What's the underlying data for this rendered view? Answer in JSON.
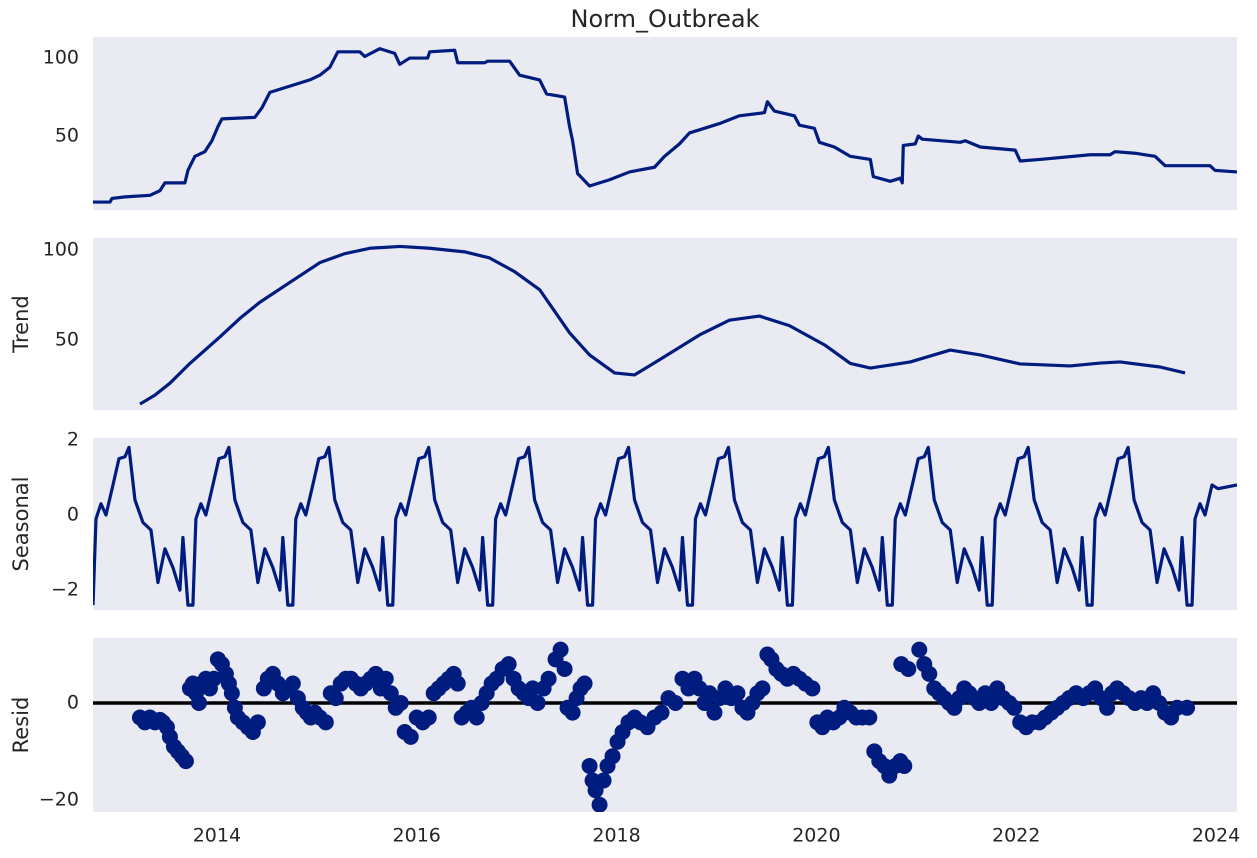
{
  "chart_data": [
    {
      "type": "line",
      "title": "Norm_Outbreak",
      "color": "#001c7f",
      "grid": false,
      "xlim": [
        2012.76,
        2024.21
      ],
      "ylim": [
        2.6,
        113.5
      ],
      "yticks": [
        50,
        100
      ],
      "x": [
        2012.76,
        2012.93,
        2012.95,
        2013.08,
        2013.33,
        2013.43,
        2013.48,
        2013.68,
        2013.71,
        2013.78,
        2013.88,
        2013.95,
        2014.01,
        2014.05,
        2014.38,
        2014.45,
        2014.53,
        2014.73,
        2014.93,
        2015.03,
        2015.13,
        2015.21,
        2015.43,
        2015.48,
        2015.63,
        2015.78,
        2015.83,
        2015.93,
        2016.11,
        2016.13,
        2016.38,
        2016.41,
        2016.68,
        2016.71,
        2016.93,
        2017.03,
        2017.23,
        2017.3,
        2017.48,
        2017.53,
        2017.56,
        2017.61,
        2017.73,
        2017.93,
        2018.13,
        2018.38,
        2018.48,
        2018.63,
        2018.73,
        2019.03,
        2019.23,
        2019.48,
        2019.51,
        2019.58,
        2019.78,
        2019.83,
        2019.98,
        2020.03,
        2020.18,
        2020.34,
        2020.54,
        2020.57,
        2020.74,
        2020.84,
        2020.86,
        2020.87,
        2020.99,
        2021.02,
        2021.06,
        2021.44,
        2021.49,
        2021.64,
        2021.99,
        2022.04,
        2022.24,
        2022.74,
        2022.94,
        2022.99,
        2023.19,
        2023.39,
        2023.49,
        2023.94,
        2023.99,
        2024.21
      ],
      "values": [
        7.7,
        7.7,
        10,
        11,
        12,
        15,
        20,
        20,
        28,
        37,
        40,
        47,
        56,
        61,
        62,
        68,
        78,
        82,
        86,
        89,
        94,
        104,
        104,
        101,
        106,
        103,
        96,
        100,
        100,
        104,
        105,
        97,
        97,
        98,
        98,
        89,
        86,
        77,
        75,
        56,
        47,
        26,
        18,
        22,
        27,
        30,
        37,
        45,
        52,
        58,
        63,
        65,
        72,
        66,
        63,
        57,
        55,
        46,
        43,
        37,
        35,
        24,
        21,
        23,
        20,
        44,
        45,
        50,
        48,
        46,
        47,
        43,
        41,
        34,
        35,
        38,
        38,
        40,
        39,
        37,
        31,
        31,
        28,
        27
      ]
    },
    {
      "type": "line",
      "ylabel": "Trend",
      "color": "#001c7f",
      "grid": false,
      "xlim": [
        2012.76,
        2024.21
      ],
      "ylim": [
        11.1,
        106.7
      ],
      "yticks": [
        50,
        100
      ],
      "x": [
        2013.23,
        2013.38,
        2013.53,
        2013.73,
        2014.03,
        2014.23,
        2014.43,
        2014.73,
        2015.03,
        2015.28,
        2015.53,
        2015.83,
        2016.13,
        2016.48,
        2016.73,
        2016.98,
        2017.23,
        2017.53,
        2017.73,
        2017.98,
        2018.18,
        2018.43,
        2018.83,
        2019.13,
        2019.43,
        2019.73,
        2020.09,
        2020.34,
        2020.54,
        2020.94,
        2021.34,
        2021.64,
        2022.04,
        2022.54,
        2022.84,
        2023.04,
        2023.44,
        2023.69
      ],
      "values": [
        14.4,
        19.4,
        26,
        37,
        51.7,
        62,
        71,
        82,
        93,
        98,
        101,
        102,
        101,
        99,
        95.6,
        88,
        78,
        54,
        41.7,
        31.7,
        30.6,
        39,
        52.8,
        61,
        63.3,
        58,
        47,
        37,
        34.4,
        37.8,
        44.4,
        41.7,
        36.7,
        35.6,
        37.2,
        37.8,
        35,
        31.7
      ]
    },
    {
      "type": "line",
      "ylabel": "Seasonal",
      "color": "#001c7f",
      "grid": false,
      "xlim": [
        2012.76,
        2024.21
      ],
      "ylim": [
        -2.53,
        2.05
      ],
      "yticks": [
        {
          "value": -2,
          "label": "−2"
        },
        0,
        2
      ],
      "x": [
        2012.76,
        2012.79,
        2012.84,
        2012.89,
        2012.96,
        2013.02,
        2013.08,
        2013.12,
        2013.18,
        2013.26,
        2013.34,
        2013.41,
        2013.48,
        2013.56,
        2013.63,
        2013.66,
        2013.71,
        2013.76,
        2013.79,
        2013.84,
        2013.89,
        2013.96,
        2014.02,
        2014.08,
        2014.12,
        2014.18,
        2014.26,
        2014.34,
        2014.41,
        2014.48,
        2014.56,
        2014.63,
        2014.66,
        2014.71,
        2014.76,
        2014.79,
        2014.84,
        2014.89,
        2014.96,
        2015.02,
        2015.08,
        2015.12,
        2015.18,
        2015.26,
        2015.34,
        2015.41,
        2015.48,
        2015.56,
        2015.63,
        2015.66,
        2015.71,
        2015.76,
        2015.79,
        2015.84,
        2015.89,
        2015.96,
        2016.02,
        2016.08,
        2016.12,
        2016.18,
        2016.26,
        2016.34,
        2016.41,
        2016.48,
        2016.56,
        2016.63,
        2016.66,
        2016.71,
        2016.76,
        2016.79,
        2016.84,
        2016.89,
        2016.96,
        2017.02,
        2017.08,
        2017.12,
        2017.18,
        2017.26,
        2017.34,
        2017.41,
        2017.48,
        2017.56,
        2017.63,
        2017.66,
        2017.71,
        2017.76,
        2017.79,
        2017.84,
        2017.89,
        2017.96,
        2018.02,
        2018.08,
        2018.12,
        2018.18,
        2018.26,
        2018.34,
        2018.41,
        2018.48,
        2018.56,
        2018.63,
        2018.66,
        2018.71,
        2018.76,
        2018.79,
        2018.84,
        2018.89,
        2018.96,
        2019.02,
        2019.08,
        2019.12,
        2019.18,
        2019.26,
        2019.34,
        2019.41,
        2019.48,
        2019.56,
        2019.63,
        2019.66,
        2019.71,
        2019.76,
        2019.79,
        2019.84,
        2019.89,
        2019.96,
        2020.02,
        2020.08,
        2020.12,
        2020.18,
        2020.26,
        2020.34,
        2020.41,
        2020.48,
        2020.56,
        2020.63,
        2020.66,
        2020.71,
        2020.76,
        2020.79,
        2020.84,
        2020.89,
        2020.96,
        2021.02,
        2021.08,
        2021.12,
        2021.18,
        2021.26,
        2021.34,
        2021.41,
        2021.48,
        2021.56,
        2021.63,
        2021.66,
        2021.71,
        2021.76,
        2021.79,
        2021.84,
        2021.89,
        2021.96,
        2022.02,
        2022.08,
        2022.12,
        2022.18,
        2022.26,
        2022.34,
        2022.41,
        2022.48,
        2022.56,
        2022.63,
        2022.66,
        2022.71,
        2022.76,
        2022.79,
        2022.84,
        2022.89,
        2022.96,
        2023.02,
        2023.08,
        2023.12,
        2023.18,
        2023.26,
        2023.34,
        2023.41,
        2023.48,
        2023.56,
        2023.63,
        2023.66,
        2023.71,
        2023.76,
        2023.79,
        2023.84,
        2023.89,
        2023.96,
        2024.02,
        2024.21
      ],
      "values": [
        -2.4,
        -0.1,
        0.3,
        0,
        0.8,
        1.5,
        1.55,
        1.8,
        0.4,
        -0.2,
        -0.4,
        -1.8,
        -0.9,
        -1.4,
        -2,
        -0.6,
        -2.4,
        -2.4,
        -0.1,
        0.3,
        0,
        0.8,
        1.5,
        1.55,
        1.8,
        0.4,
        -0.2,
        -0.4,
        -1.8,
        -0.9,
        -1.4,
        -2,
        -0.6,
        -2.4,
        -2.4,
        -0.1,
        0.3,
        0,
        0.8,
        1.5,
        1.55,
        1.8,
        0.4,
        -0.2,
        -0.4,
        -1.8,
        -0.9,
        -1.4,
        -2,
        -0.6,
        -2.4,
        -2.4,
        -0.1,
        0.3,
        0,
        0.8,
        1.5,
        1.55,
        1.8,
        0.4,
        -0.2,
        -0.4,
        -1.8,
        -0.9,
        -1.4,
        -2,
        -0.6,
        -2.4,
        -2.4,
        -0.1,
        0.3,
        0,
        0.8,
        1.5,
        1.55,
        1.8,
        0.4,
        -0.2,
        -0.4,
        -1.8,
        -0.9,
        -1.4,
        -2,
        -0.6,
        -2.4,
        -2.4,
        -0.1,
        0.3,
        0,
        0.8,
        1.5,
        1.55,
        1.8,
        0.4,
        -0.2,
        -0.4,
        -1.8,
        -0.9,
        -1.4,
        -2,
        -0.6,
        -2.4,
        -2.4,
        -0.1,
        0.3,
        0,
        0.8,
        1.5,
        1.55,
        1.8,
        0.4,
        -0.2,
        -0.4,
        -1.8,
        -0.9,
        -1.4,
        -2,
        -0.6,
        -2.4,
        -2.4,
        -0.1,
        0.3,
        0,
        0.8,
        1.5,
        1.55,
        1.8,
        0.4,
        -0.2,
        -0.4,
        -1.8,
        -0.9,
        -1.4,
        -2,
        -0.6,
        -2.4,
        -2.4,
        -0.1,
        0.3,
        0,
        0.8,
        1.5,
        1.55,
        1.8,
        0.4,
        -0.2,
        -0.4,
        -1.8,
        -0.9,
        -1.4,
        -2,
        -0.6,
        -2.4,
        -2.4,
        -0.1,
        0.3,
        0,
        0.8,
        1.5,
        1.55,
        1.8,
        0.4,
        -0.2,
        -0.4,
        -1.8,
        -0.9,
        -1.4,
        -2,
        -0.6,
        -2.4,
        -2.4,
        -0.1,
        0.3,
        0,
        0.8,
        1.5,
        1.55,
        1.8,
        0.4,
        -0.2,
        -0.4,
        -1.8,
        -0.9,
        -1.4,
        -2,
        -0.6,
        -2.4,
        -2.4,
        -0.1,
        0.3,
        0,
        0.8,
        0.7,
        0.8
      ]
    },
    {
      "type": "scatter",
      "ylabel": "Resid",
      "color": "#001c7f",
      "grid": false,
      "axhline": 0,
      "xlim": [
        2012.76,
        2024.21
      ],
      "ylim": [
        -22.5,
        13.4
      ],
      "yticks": [
        {
          "value": -20,
          "label": "−20"
        },
        0
      ],
      "xticks": [
        2014,
        2016,
        2018,
        2020,
        2022,
        2024
      ],
      "x": [
        2013.23,
        2013.28,
        2013.33,
        2013.38,
        2013.43,
        2013.46,
        2013.5,
        2013.53,
        2013.57,
        2013.61,
        2013.65,
        2013.69,
        2013.73,
        2013.76,
        2013.79,
        2013.82,
        2013.85,
        2013.89,
        2013.93,
        2013.97,
        2014.01,
        2014.05,
        2014.09,
        2014.12,
        2014.15,
        2014.18,
        2014.21,
        2014.26,
        2014.31,
        2014.36,
        2014.41,
        2014.47,
        2014.51,
        2014.56,
        2014.61,
        2014.66,
        2014.71,
        2014.76,
        2014.81,
        2014.86,
        2014.9,
        2014.94,
        2014.98,
        2015.03,
        2015.09,
        2015.14,
        2015.19,
        2015.24,
        2015.29,
        2015.34,
        2015.39,
        2015.44,
        2015.49,
        2015.54,
        2015.59,
        2015.64,
        2015.69,
        2015.74,
        2015.79,
        2015.84,
        2015.88,
        2015.94,
        2016.0,
        2016.06,
        2016.12,
        2016.17,
        2016.22,
        2016.27,
        2016.32,
        2016.37,
        2016.41,
        2016.45,
        2016.5,
        2016.55,
        2016.6,
        2016.65,
        2016.7,
        2016.75,
        2016.8,
        2016.86,
        2016.92,
        2016.97,
        2017.02,
        2017.07,
        2017.12,
        2017.16,
        2017.21,
        2017.27,
        2017.32,
        2017.39,
        2017.44,
        2017.48,
        2017.51,
        2017.56,
        2017.6,
        2017.64,
        2017.68,
        2017.73,
        2017.76,
        2017.79,
        2017.83,
        2017.87,
        2017.91,
        2017.96,
        2018.01,
        2018.06,
        2018.12,
        2018.18,
        2018.24,
        2018.31,
        2018.38,
        2018.45,
        2018.52,
        2018.59,
        2018.66,
        2018.72,
        2018.78,
        2018.83,
        2018.88,
        2018.93,
        2018.98,
        2019.03,
        2019.09,
        2019.15,
        2019.21,
        2019.26,
        2019.31,
        2019.36,
        2019.41,
        2019.46,
        2019.51,
        2019.55,
        2019.6,
        2019.65,
        2019.71,
        2019.77,
        2019.83,
        2019.89,
        2019.96,
        2020.01,
        2020.06,
        2020.11,
        2020.17,
        2020.23,
        2020.28,
        2020.34,
        2020.4,
        2020.46,
        2020.53,
        2020.58,
        2020.63,
        2020.68,
        2020.73,
        2020.79,
        2020.84,
        2020.88,
        2020.85,
        2020.92,
        2021.03,
        2021.08,
        2021.13,
        2021.18,
        2021.23,
        2021.28,
        2021.33,
        2021.38,
        2021.43,
        2021.48,
        2021.53,
        2021.58,
        2021.63,
        2021.69,
        2021.75,
        2021.81,
        2021.87,
        2021.93,
        2021.98,
        2022.04,
        2022.1,
        2022.16,
        2022.23,
        2022.29,
        2022.35,
        2022.41,
        2022.47,
        2022.53,
        2022.6,
        2022.67,
        2022.73,
        2022.79,
        2022.85,
        2022.91,
        2022.96,
        2023.01,
        2023.07,
        2023.13,
        2023.19,
        2023.25,
        2023.31,
        2023.37,
        2023.43,
        2023.49,
        2023.55,
        2023.61,
        2023.71
      ],
      "values": [
        -3,
        -4,
        -3,
        -4,
        -3.5,
        -4,
        -5,
        -7,
        -9,
        -10,
        -11,
        -12,
        3,
        4,
        2,
        0,
        4,
        5,
        3,
        5,
        9,
        8,
        6,
        4,
        2,
        -1,
        -3,
        -4,
        -5,
        -6,
        -4,
        3,
        5,
        6,
        4,
        2,
        3,
        4,
        1,
        -1,
        -2,
        -3,
        -2,
        -3,
        -4,
        2,
        1,
        4,
        5,
        5,
        4,
        3,
        4,
        5,
        6,
        3,
        5,
        2,
        -1,
        0,
        -6,
        -7,
        -3,
        -4,
        -3,
        2,
        3,
        4,
        5,
        6,
        4,
        -3,
        -2,
        -1,
        -3,
        0,
        2,
        4,
        5,
        7,
        8,
        5,
        3,
        2,
        1,
        3,
        0,
        3,
        5,
        9,
        11,
        7,
        -1,
        -2,
        1,
        3,
        4,
        -13,
        -16,
        -18,
        -21,
        -16,
        -13,
        -11,
        -8,
        -6,
        -4,
        -3,
        -4,
        -5,
        -3,
        -2,
        1,
        0,
        5,
        3,
        5,
        3,
        0,
        2,
        -2,
        1,
        3,
        1,
        2,
        -1,
        -2,
        0,
        2,
        3,
        10,
        9,
        7,
        6,
        5,
        6,
        5,
        4,
        3,
        -4,
        -5,
        -3,
        -4,
        -3,
        -1,
        -2,
        -3,
        -3,
        -3,
        -10,
        -12,
        -13,
        -15,
        -13,
        -12,
        -13,
        8,
        7,
        11,
        8,
        6,
        3,
        2,
        1,
        0,
        -1,
        1,
        3,
        2,
        1,
        0,
        2,
        0,
        3,
        1,
        0,
        -1,
        -4,
        -5,
        -4,
        -4,
        -3,
        -2,
        -1,
        0,
        1,
        2,
        1,
        2,
        3,
        1,
        -1,
        2,
        3,
        2,
        1,
        0,
        1,
        0,
        2,
        0,
        -2,
        -3,
        -1,
        -1
      ]
    }
  ]
}
